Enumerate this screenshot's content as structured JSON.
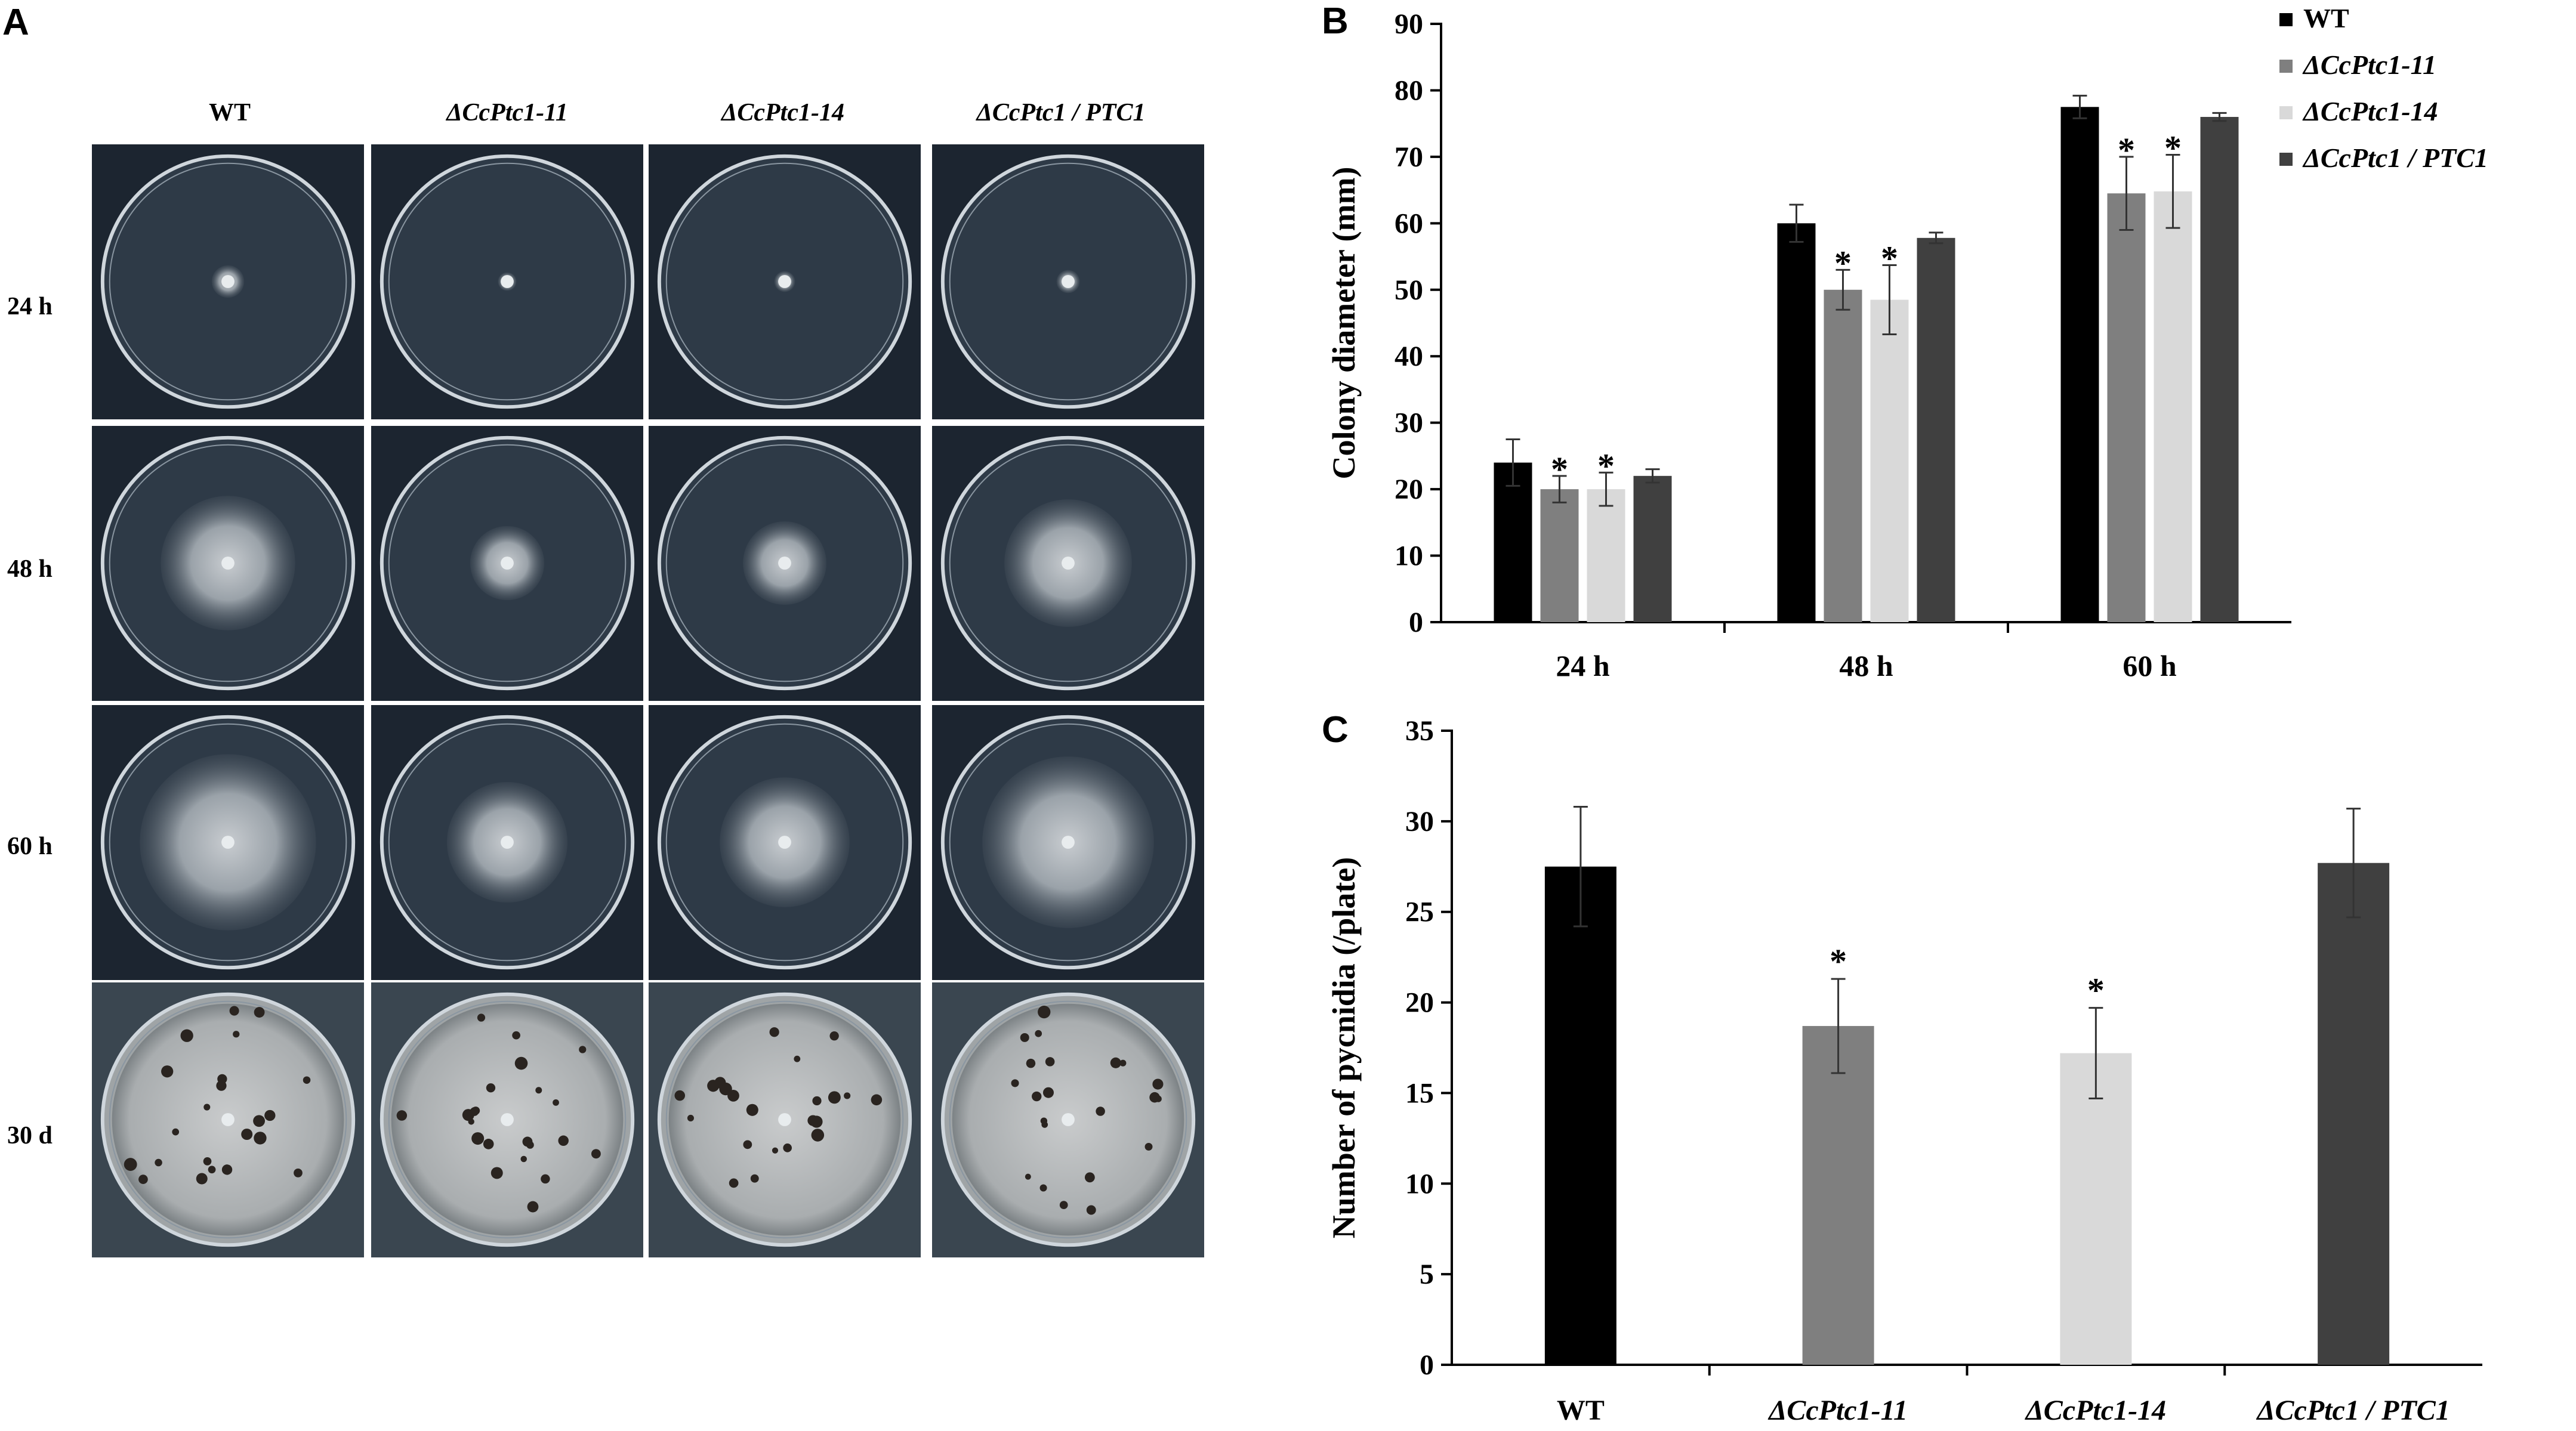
{
  "panels": {
    "a": "A",
    "b": "B",
    "c": "C"
  },
  "panel_a": {
    "columns": [
      "WT",
      "ΔCcPtc1-11",
      "ΔCcPtc1-14",
      "ΔCcPtc1 / PTC1"
    ],
    "rows": [
      "24 h",
      "48 h",
      "60 h",
      "30 d"
    ],
    "colony_growth": [
      [
        0.14,
        0.08,
        0.09,
        0.1
      ],
      [
        0.58,
        0.32,
        0.36,
        0.55
      ],
      [
        0.76,
        0.52,
        0.56,
        0.74
      ],
      [
        1.0,
        1.0,
        1.0,
        1.0
      ]
    ]
  },
  "chart_data": [
    {
      "type": "bar",
      "categories": [
        "24 h",
        "48 h",
        "60 h"
      ],
      "ylabel": "Colony diameter (mm)",
      "ylim": [
        0,
        90
      ],
      "yticks": [
        0,
        10,
        20,
        30,
        40,
        50,
        60,
        70,
        80,
        90
      ],
      "legend_position": "top-right",
      "series": [
        {
          "name": "WT",
          "color": "#000000",
          "values": [
            24,
            60,
            77.5
          ],
          "errors": [
            3.5,
            2.8,
            1.7
          ],
          "significant": [
            false,
            false,
            false
          ]
        },
        {
          "name": "ΔCcPtc1-11",
          "color": "#7f7f7f",
          "values": [
            20,
            50,
            64.5
          ],
          "errors": [
            2,
            3,
            5.5
          ],
          "significant": [
            true,
            true,
            true
          ]
        },
        {
          "name": "ΔCcPtc1-14",
          "color": "#d9d9d9",
          "values": [
            20,
            48.5,
            64.8
          ],
          "errors": [
            2.5,
            5.2,
            5.5
          ],
          "significant": [
            true,
            true,
            true
          ]
        },
        {
          "name": "ΔCcPtc1 / PTC1",
          "color": "#404040",
          "values": [
            22,
            57.8,
            76
          ],
          "errors": [
            1,
            0.8,
            0.6
          ],
          "significant": [
            false,
            false,
            false
          ]
        }
      ],
      "significance_marker": "*"
    },
    {
      "type": "bar",
      "categories": [
        "WT",
        "ΔCcPtc1-11",
        "ΔCcPtc1-14",
        "ΔCcPtc1 / PTC1"
      ],
      "ylabel": "Number of pycnidia (/plate)",
      "ylim": [
        0,
        35
      ],
      "yticks": [
        0,
        5,
        10,
        15,
        20,
        25,
        30,
        35
      ],
      "values": [
        27.5,
        18.7,
        17.2,
        27.7
      ],
      "errors": [
        3.3,
        2.6,
        2.5,
        3.0
      ],
      "colors": [
        "#000000",
        "#7f7f7f",
        "#d9d9d9",
        "#404040"
      ],
      "significant": [
        false,
        true,
        true,
        false
      ],
      "significance_marker": "*"
    }
  ]
}
